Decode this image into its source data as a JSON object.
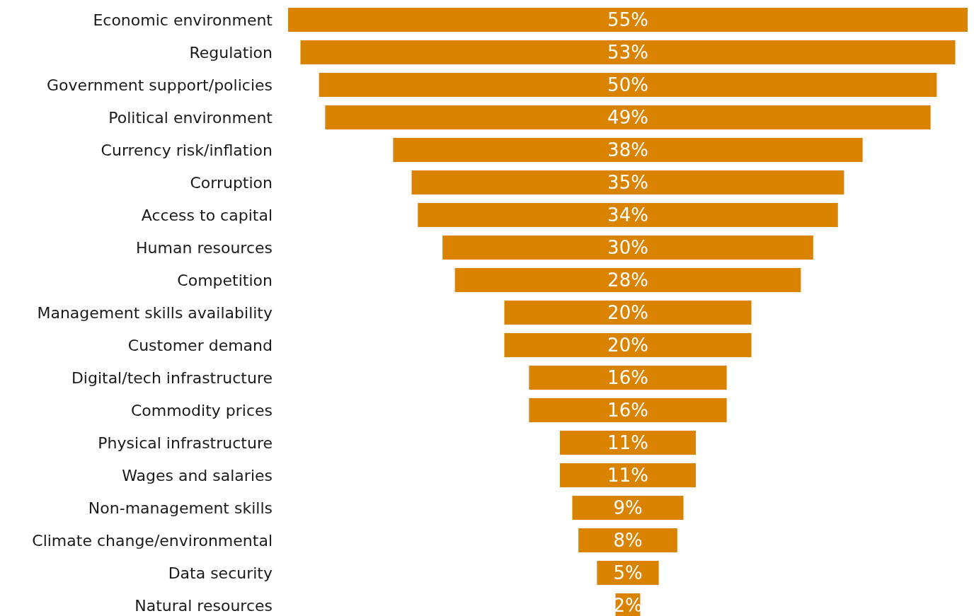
{
  "chart_data": {
    "type": "other",
    "data_labels": true,
    "color": "#d98300",
    "categories": [
      "Economic environment",
      "Regulation",
      "Government support/policies",
      "Political environment",
      "Currency risk/inflation",
      "Corruption",
      "Access to capital",
      "Human resources",
      "Competition",
      "Management skills availability",
      "Customer demand",
      "Digital/tech infrastructure",
      "Commodity prices",
      "Physical infrastructure",
      "Wages and salaries",
      "Non-management skills",
      "Climate change/environmental",
      "Data security",
      "Natural resources"
    ],
    "values": [
      55,
      53,
      50,
      49,
      38,
      35,
      34,
      30,
      28,
      20,
      20,
      16,
      16,
      11,
      11,
      9,
      8,
      5,
      2
    ],
    "value_labels": [
      "55%",
      "53%",
      "50%",
      "49%",
      "38%",
      "35%",
      "34%",
      "30%",
      "28%",
      "20%",
      "20%",
      "16%",
      "16%",
      "11%",
      "11%",
      "9%",
      "8%",
      "5%",
      "2%"
    ]
  }
}
